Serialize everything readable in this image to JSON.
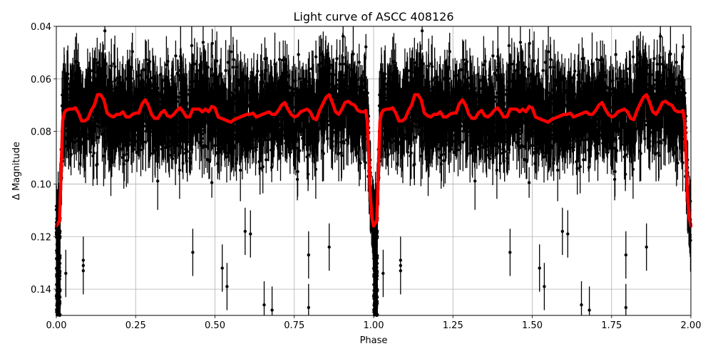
{
  "chart_data": {
    "type": "scatter",
    "title": "Light curve of ASCC 408126",
    "xlabel": "Phase",
    "ylabel": "Δ Magnitude",
    "xlim": [
      0.0,
      2.0
    ],
    "ylim": [
      0.15,
      0.04
    ],
    "y_inverted": true,
    "grid": true,
    "legend": null,
    "xticks": [
      "0.00",
      "0.25",
      "0.50",
      "0.75",
      "1.00",
      "1.25",
      "1.50",
      "1.75",
      "2.00"
    ],
    "yticks": [
      "0.04",
      "0.06",
      "0.08",
      "0.10",
      "0.12",
      "0.14"
    ],
    "series": [
      {
        "name": "observations",
        "type": "errorbar",
        "color": "#000000",
        "description": "Dense phase-folded photometry with error bars, scatter mostly between 0.045 and 0.10 mag, repeated for phase 0-1 and 1-2",
        "typical_range": [
          0.045,
          0.1
        ],
        "outliers": [
          {
            "x": 0.085,
            "y": 0.129
          },
          {
            "x": 0.085,
            "y": 0.131
          },
          {
            "x": 0.085,
            "y": 0.133
          },
          {
            "x": 0.03,
            "y": 0.134
          },
          {
            "x": 0.43,
            "y": 0.126
          },
          {
            "x": 0.523,
            "y": 0.132
          },
          {
            "x": 0.538,
            "y": 0.139
          },
          {
            "x": 0.655,
            "y": 0.146
          },
          {
            "x": 0.68,
            "y": 0.148
          },
          {
            "x": 0.795,
            "y": 0.127
          },
          {
            "x": 0.795,
            "y": 0.147
          },
          {
            "x": 0.86,
            "y": 0.124
          },
          {
            "x": 0.595,
            "y": 0.118
          },
          {
            "x": 0.612,
            "y": 0.119
          }
        ]
      },
      {
        "name": "binned model",
        "type": "line",
        "color": "#ff0000",
        "x": [
          0.0,
          0.01,
          0.015,
          0.02,
          0.025,
          0.03,
          0.04,
          0.05,
          0.06,
          0.07,
          0.08,
          0.09,
          0.1,
          0.11,
          0.12,
          0.13,
          0.14,
          0.15,
          0.16,
          0.17,
          0.18,
          0.19,
          0.2,
          0.21,
          0.22,
          0.23,
          0.24,
          0.25,
          0.26,
          0.27,
          0.28,
          0.29,
          0.3,
          0.31,
          0.32,
          0.33,
          0.34,
          0.35,
          0.36,
          0.37,
          0.38,
          0.39,
          0.4,
          0.41,
          0.42,
          0.43,
          0.44,
          0.45,
          0.46,
          0.47,
          0.48,
          0.49,
          0.5,
          0.51,
          0.52,
          0.53,
          0.54,
          0.55,
          0.56,
          0.57,
          0.58,
          0.59,
          0.6,
          0.61,
          0.62,
          0.63,
          0.64,
          0.65,
          0.66,
          0.67,
          0.68,
          0.69,
          0.7,
          0.71,
          0.72,
          0.73,
          0.74,
          0.75,
          0.76,
          0.77,
          0.78,
          0.79,
          0.8,
          0.81,
          0.82,
          0.83,
          0.84,
          0.85,
          0.86,
          0.87,
          0.88,
          0.89,
          0.9,
          0.91,
          0.92,
          0.93,
          0.94,
          0.95,
          0.96,
          0.97,
          0.975,
          0.98,
          0.985,
          0.99,
          0.995,
          1.0
        ],
        "y": [
          0.116,
          0.114,
          0.095,
          0.076,
          0.073,
          0.072,
          0.0715,
          0.0715,
          0.071,
          0.073,
          0.076,
          0.076,
          0.075,
          0.072,
          0.07,
          0.066,
          0.066,
          0.068,
          0.073,
          0.074,
          0.0745,
          0.0735,
          0.0735,
          0.0725,
          0.0745,
          0.0745,
          0.0735,
          0.073,
          0.073,
          0.0695,
          0.068,
          0.07,
          0.0735,
          0.075,
          0.075,
          0.073,
          0.072,
          0.074,
          0.0745,
          0.0735,
          0.072,
          0.071,
          0.0725,
          0.0745,
          0.0745,
          0.0715,
          0.0715,
          0.0715,
          0.0725,
          0.0715,
          0.0725,
          0.0705,
          0.071,
          0.0745,
          0.075,
          0.0755,
          0.076,
          0.0765,
          0.0755,
          0.075,
          0.0745,
          0.074,
          0.0735,
          0.0735,
          0.073,
          0.0745,
          0.074,
          0.0735,
          0.073,
          0.0725,
          0.0735,
          0.0735,
          0.072,
          0.07,
          0.069,
          0.0715,
          0.0735,
          0.0745,
          0.074,
          0.0725,
          0.072,
          0.0715,
          0.0725,
          0.075,
          0.0755,
          0.072,
          0.0695,
          0.067,
          0.066,
          0.069,
          0.0725,
          0.0735,
          0.0715,
          0.069,
          0.0685,
          0.0695,
          0.07,
          0.072,
          0.0725,
          0.0725,
          0.072,
          0.076,
          0.09,
          0.105,
          0.113,
          0.116
        ]
      }
    ]
  }
}
